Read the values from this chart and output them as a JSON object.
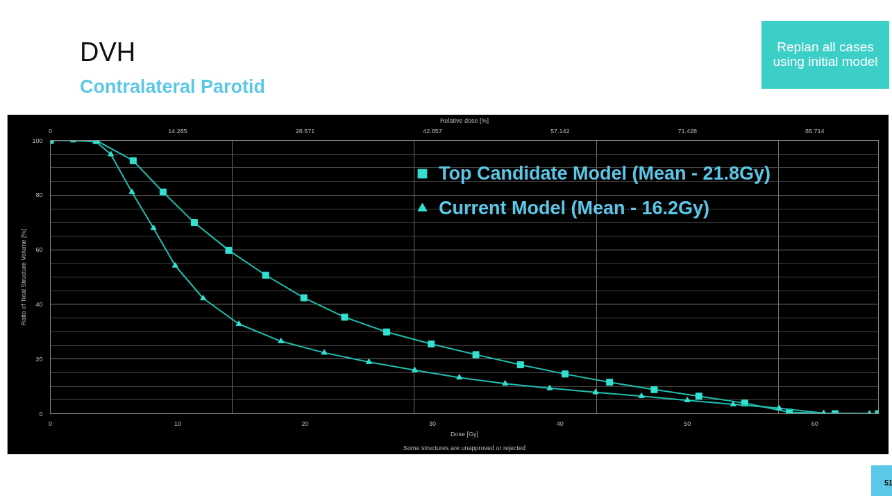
{
  "chart_data": {
    "type": "line",
    "title": "DVH",
    "subtitle": "Contralateral Parotid",
    "xlabel": "Dose [Gy]",
    "x2label": "Relative dose [%]",
    "ylabel": "Ratio of Total Structure Volume [%]",
    "xlim": [
      0,
      65
    ],
    "xticks": [
      0,
      10,
      20,
      30,
      40,
      50,
      60
    ],
    "x2lim": [
      0,
      92.857
    ],
    "x2ticks": [
      0,
      14.285,
      28.571,
      42.857,
      57.142,
      71.428,
      85.714
    ],
    "ylim": [
      0,
      100
    ],
    "yticks": [
      0,
      20,
      40,
      60,
      80,
      100
    ],
    "grid": true,
    "legend": "top right",
    "series": [
      {
        "name": "Top Candidate Model (Mean - 21.8Gy)",
        "color": "#33e0d0",
        "marker": "square",
        "x": [
          0,
          3.6,
          6.5,
          8.85,
          11.3,
          14.0,
          16.9,
          19.9,
          23.1,
          26.4,
          29.9,
          33.4,
          36.9,
          40.4,
          43.9,
          47.4,
          50.9,
          54.5,
          58.0,
          61.6,
          65
        ],
        "values": [
          100,
          100,
          92.6,
          81.1,
          69.9,
          59.8,
          50.7,
          42.4,
          35.3,
          29.9,
          25.5,
          21.6,
          17.9,
          14.5,
          11.5,
          8.8,
          6.4,
          3.9,
          0.5,
          0,
          0
        ]
      },
      {
        "name": "Current Model (Mean - 16.2Gy)",
        "color": "#33e0d0",
        "marker": "triangle",
        "x": [
          1.8,
          3.6,
          4.75,
          6.4,
          8.1,
          9.8,
          12.0,
          14.8,
          18.1,
          21.5,
          25.0,
          28.6,
          32.1,
          35.7,
          39.2,
          42.8,
          46.4,
          50.0,
          53.6,
          57.2,
          60.7,
          64.3
        ],
        "values": [
          100,
          99.5,
          94.9,
          81.1,
          67.9,
          54.2,
          42.2,
          32.8,
          26.5,
          22.3,
          18.9,
          15.9,
          13.2,
          11.0,
          9.3,
          7.8,
          6.4,
          4.9,
          3.4,
          2.0,
          0.2,
          0
        ]
      }
    ],
    "annotations": [
      "Replan all cases using initial model",
      "Some structures are unapproved or rejected",
      "51"
    ]
  }
}
